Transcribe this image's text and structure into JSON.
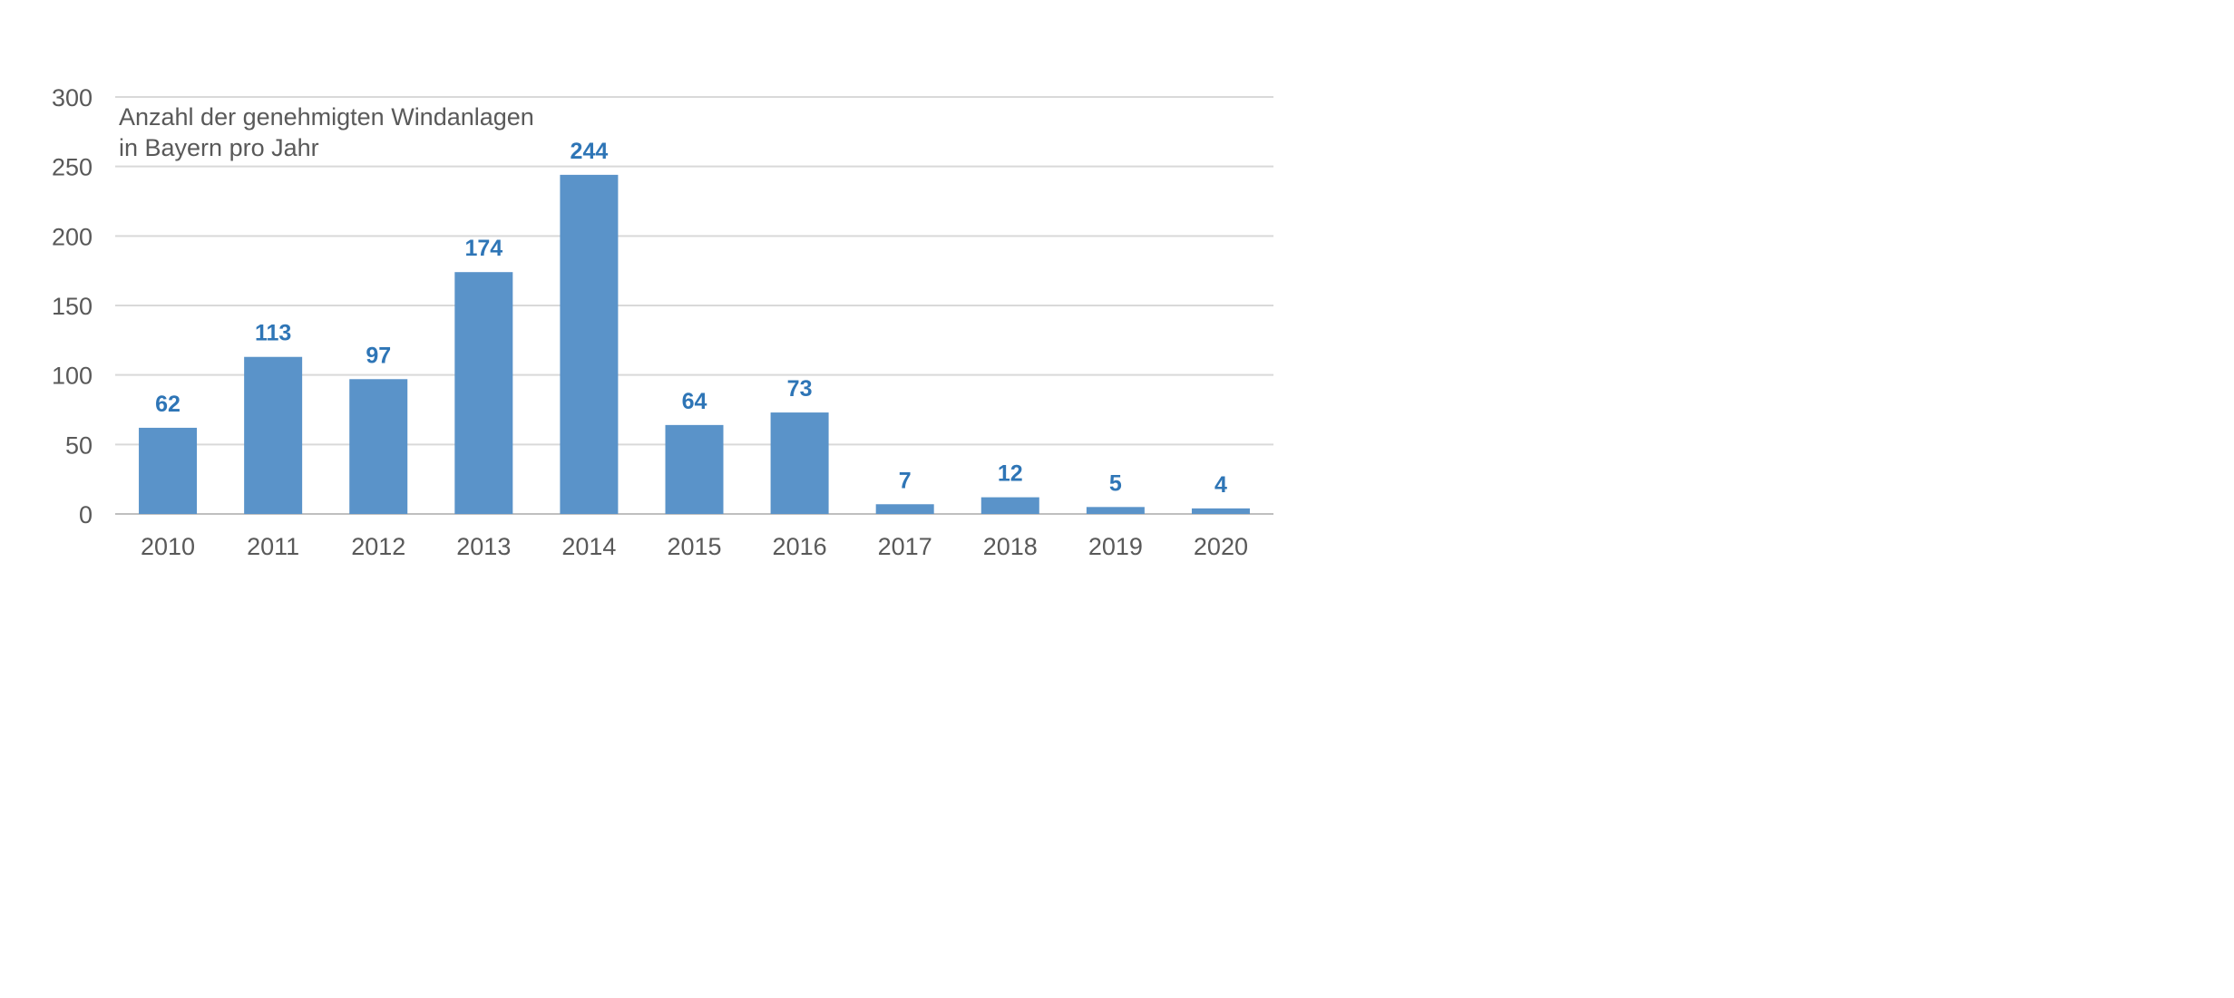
{
  "chart_data": {
    "type": "bar",
    "title": "Anzahl der genehmigten Windanlagen",
    "subtitle": "in Bayern pro Jahr",
    "categories": [
      "2010",
      "2011",
      "2012",
      "2013",
      "2014",
      "2015",
      "2016",
      "2017",
      "2018",
      "2019",
      "2020"
    ],
    "values": [
      62,
      113,
      97,
      174,
      244,
      64,
      73,
      7,
      12,
      5,
      4
    ],
    "xlabel": "",
    "ylabel": "",
    "ylim": [
      0,
      300
    ],
    "yticks": [
      0,
      50,
      100,
      150,
      200,
      250,
      300
    ],
    "grid": true,
    "legend": "none",
    "colors": {
      "bar": "#5a93c9",
      "label": "#2e75b6",
      "axis_text": "#595959",
      "grid": "#d9d9d9"
    }
  }
}
